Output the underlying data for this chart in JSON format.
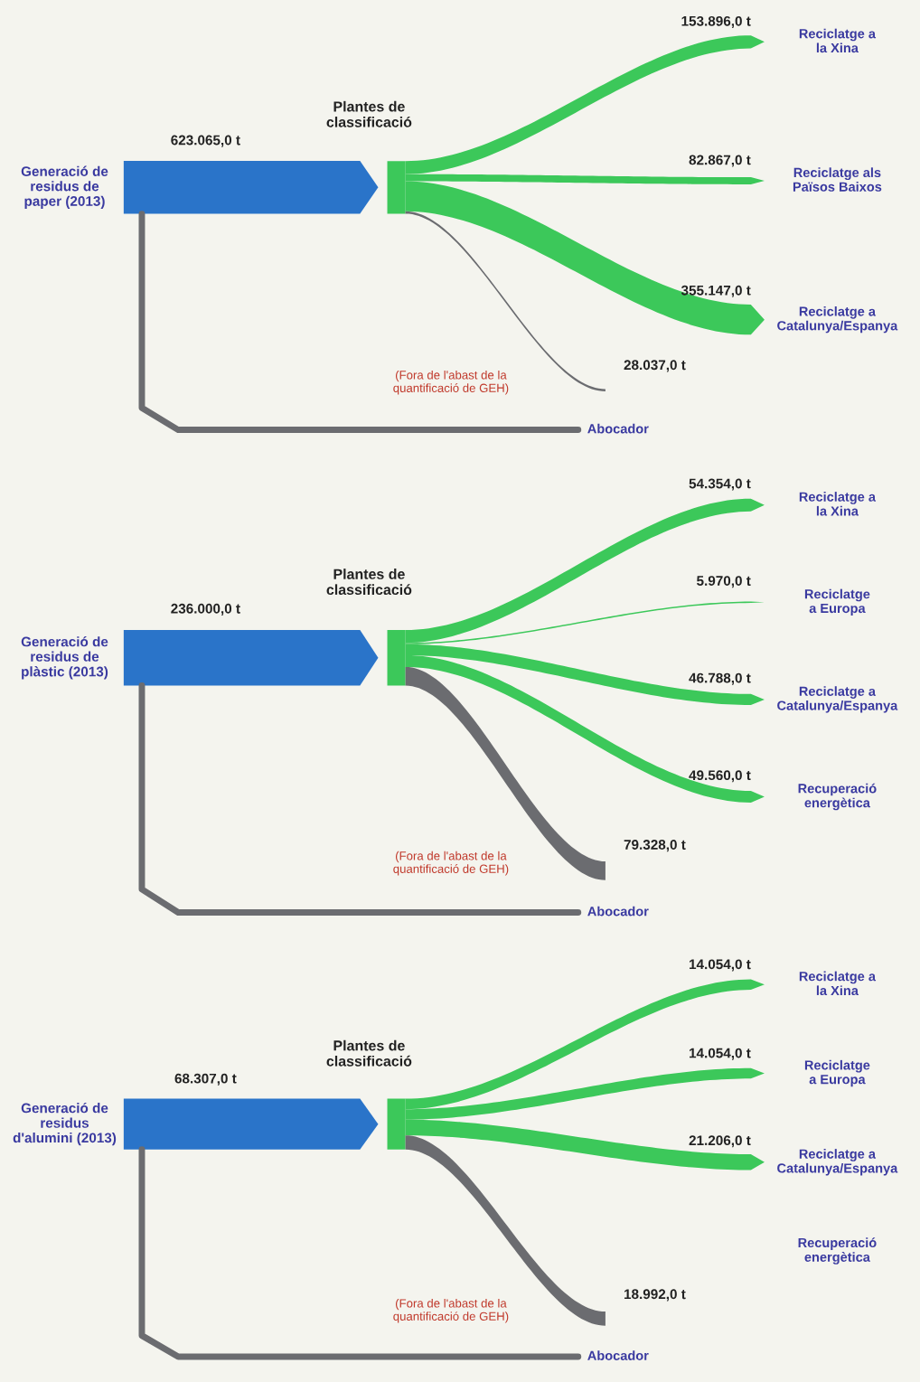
{
  "chart_data": [
    {
      "type": "other",
      "categories": [
        "Generació de\nresidus de\npaper (2013)",
        "Reciclatge a\nla Xina",
        "Reciclatge als\nPaïsos Baixos",
        "Reciclatge a\nCatalunya/Espanya",
        "Abocador"
      ],
      "values": [
        623065.0,
        153896.0,
        82867.0,
        355147.0,
        28037.0
      ],
      "value_labels": [
        "623.065,0 t",
        "153.896,0 t",
        "82.867,0 t",
        "355.147,0 t",
        "28.037,0 t"
      ],
      "colors": [
        "#2a74c9",
        "#3cc85a",
        "#3cc85a",
        "#3cc85a",
        "#6b6c70"
      ],
      "annotations": [
        "Plantes de\nclassificació",
        "(Fora de l'abast de la\nquantificació de GEH)"
      ]
    },
    {
      "type": "other",
      "categories": [
        "Generació de\nresidus de\nplàstic (2013)",
        "Reciclatge a\nla Xina",
        "Reciclatge\na Europa",
        "Reciclatge a\nCatalunya/Espanya",
        "Recuperació\nenergètica",
        "Abocador"
      ],
      "values": [
        236000.0,
        54354.0,
        5970.0,
        46788.0,
        49560.0,
        79328.0
      ],
      "value_labels": [
        "236.000,0 t",
        "54.354,0 t",
        "5.970,0 t",
        "46.788,0 t",
        "49.560,0 t",
        "79.328,0 t"
      ],
      "colors": [
        "#2a74c9",
        "#3cc85a",
        "#3cc85a",
        "#3cc85a",
        "#3cc85a",
        "#6b6c70"
      ],
      "annotations": [
        "Plantes de\nclassificació",
        "(Fora de l'abast de la\nquantificació de GEH)"
      ]
    },
    {
      "type": "other",
      "categories": [
        "Generació de\nresidus\nd'alumini (2013)",
        "Reciclatge a\nla Xina",
        "Reciclatge\na Europa",
        "Reciclatge a\nCatalunya/Espanya",
        "Recuperació\nenergètica",
        "Abocador"
      ],
      "values": [
        68307.0,
        14054.0,
        14054.0,
        21206.0,
        null,
        18992.0
      ],
      "value_labels": [
        "68.307,0 t",
        "14.054,0 t",
        "14.054,0 t",
        "21.206,0 t",
        null,
        "18.992,0 t"
      ],
      "colors": [
        "#2a74c9",
        "#3cc85a",
        "#3cc85a",
        "#3cc85a",
        "#3cc85a",
        "#6b6c70"
      ],
      "annotations": [
        "Plantes de\nclassificació",
        "(Fora de l'abast de la\nquantificació de GEH)"
      ]
    }
  ]
}
